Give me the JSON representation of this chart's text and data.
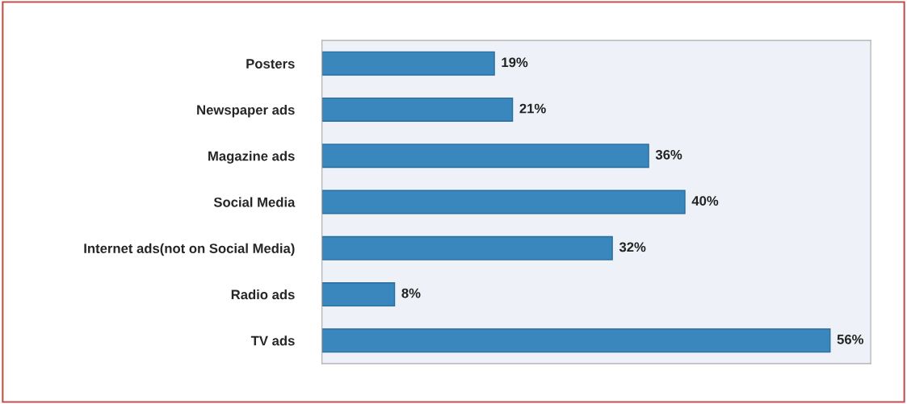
{
  "chart_data": {
    "type": "bar",
    "orientation": "horizontal",
    "categories": [
      "Posters",
      "Newspaper ads",
      "Magazine ads",
      "Social Media",
      "Internet ads(not on Social Media)",
      "Radio ads",
      "TV ads"
    ],
    "values": [
      19,
      21,
      36,
      40,
      32,
      8,
      56
    ],
    "value_labels": [
      "19%",
      "21%",
      "36%",
      "40%",
      "32%",
      "8%",
      "56%"
    ],
    "color": "#3a87bd",
    "tick_labels": "y",
    "grid": false,
    "legend": false
  }
}
